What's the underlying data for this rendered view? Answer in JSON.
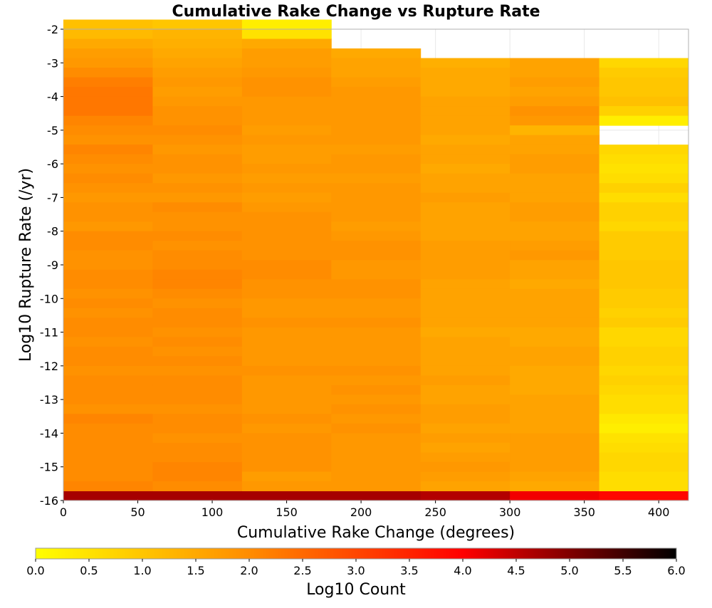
{
  "chart_data": {
    "type": "heatmap",
    "title": "Cumulative Rake Change vs Rupture Rate",
    "xlabel": "Cumulative Rake Change (degrees)",
    "ylabel": "Log10 Rupture Rate (/yr)",
    "xlim": [
      0,
      420
    ],
    "ylim": [
      -16,
      -2
    ],
    "grid": true,
    "x_ticks": [
      "0",
      "50",
      "100",
      "150",
      "200",
      "250",
      "300",
      "350",
      "400"
    ],
    "y_ticks": [
      "-2",
      "-3",
      "-4",
      "-5",
      "-6",
      "-7",
      "-8",
      "-9",
      "-10",
      "-11",
      "-12",
      "-13",
      "-14",
      "-15",
      "-16"
    ],
    "x_bin_edges": [
      0,
      60,
      120,
      180,
      240,
      300,
      360,
      420
    ],
    "y_bin_height": 0.2857,
    "colorbar": {
      "label": "Log10 Count",
      "range": [
        0,
        6
      ],
      "ticks": [
        "0.0",
        "0.5",
        "1.0",
        "1.5",
        "2.0",
        "2.5",
        "3.0",
        "3.5",
        "4.0",
        "4.5",
        "5.0",
        "5.5",
        "6.0"
      ],
      "colors": [
        "#ffff00",
        "#ff8c00",
        "#ff0000",
        "#000000"
      ]
    },
    "columns": [
      {
        "x_start": 0,
        "x_end": 60,
        "bottom_value": 4.7,
        "values": [
          1.1,
          1.2,
          1.5,
          1.7,
          1.8,
          2.0,
          2.2,
          2.3,
          2.3,
          2.3,
          2.1,
          2.0,
          1.9,
          2.1,
          2.0,
          1.9,
          2.0,
          1.9,
          1.8,
          1.9,
          1.9,
          1.8,
          2.0,
          2.0,
          1.9,
          1.9,
          2.0,
          2.0,
          1.9,
          2.0,
          1.9,
          2.0,
          2.0,
          1.9,
          2.0,
          2.0,
          1.9,
          2.0,
          2.0,
          2.0,
          1.9,
          2.1,
          2.0,
          2.0,
          2.0,
          2.0,
          2.0,
          2.0,
          2.1
        ]
      },
      {
        "x_start": 60,
        "x_end": 120,
        "bottom_value": 4.7,
        "values": [
          1.0,
          1.3,
          1.4,
          1.5,
          1.6,
          1.7,
          1.8,
          1.7,
          1.8,
          1.9,
          1.9,
          2.0,
          1.9,
          1.8,
          1.9,
          1.9,
          1.8,
          1.9,
          1.8,
          2.0,
          1.9,
          1.9,
          2.0,
          1.9,
          2.0,
          2.0,
          2.1,
          2.1,
          2.0,
          1.9,
          2.0,
          2.0,
          1.9,
          2.0,
          1.9,
          2.0,
          1.9,
          2.0,
          2.0,
          2.0,
          1.9,
          2.0,
          2.0,
          1.9,
          2.0,
          2.0,
          2.1,
          2.1,
          2.0
        ]
      },
      {
        "x_start": 120,
        "x_end": 180,
        "bottom_value": 4.7,
        "values": [
          0.3,
          0.5,
          1.5,
          1.7,
          1.7,
          1.8,
          1.9,
          1.9,
          1.8,
          1.8,
          1.8,
          1.7,
          1.8,
          1.7,
          1.7,
          1.8,
          1.7,
          1.8,
          1.7,
          1.8,
          1.9,
          1.9,
          1.9,
          1.9,
          1.9,
          2.0,
          2.0,
          1.9,
          1.9,
          1.8,
          1.8,
          1.9,
          1.8,
          1.8,
          1.8,
          1.8,
          1.9,
          1.8,
          1.8,
          1.8,
          1.8,
          1.9,
          1.8,
          1.9,
          1.9,
          1.9,
          1.9,
          1.7,
          1.8
        ]
      },
      {
        "x_start": 180,
        "x_end": 240,
        "bottom_value": 4.7,
        "values": [
          1.5,
          1.6,
          1.6,
          1.7,
          1.8,
          1.8,
          1.8,
          1.8,
          1.8,
          1.8,
          1.7,
          1.8,
          1.8,
          1.7,
          1.8,
          1.8,
          1.8,
          1.8,
          1.7,
          1.8,
          1.9,
          1.9,
          1.8,
          1.8,
          1.9,
          1.9,
          1.8,
          1.8,
          1.9,
          1.8,
          1.8,
          1.8,
          1.8,
          1.9,
          1.8,
          1.9,
          1.8,
          1.9,
          1.8,
          1.9,
          1.8,
          1.8,
          1.8,
          1.8,
          1.8,
          1.8
        ]
      },
      {
        "x_start": 240,
        "x_end": 300,
        "bottom_value": 4.6,
        "values": [
          1.4,
          1.5,
          1.5,
          1.5,
          1.6,
          1.6,
          1.6,
          1.6,
          1.5,
          1.6,
          1.6,
          1.5,
          1.6,
          1.6,
          1.7,
          1.6,
          1.6,
          1.6,
          1.6,
          1.7,
          1.7,
          1.7,
          1.7,
          1.6,
          1.6,
          1.6,
          1.6,
          1.6,
          1.5,
          1.6,
          1.6,
          1.6,
          1.6,
          1.7,
          1.6,
          1.6,
          1.7,
          1.7,
          1.6,
          1.7,
          1.6,
          1.7,
          1.8,
          1.7,
          1.6
        ]
      },
      {
        "x_start": 300,
        "x_end": 360,
        "bottom_value": 4.1,
        "values": [
          1.6,
          1.6,
          1.7,
          1.6,
          1.7,
          1.9,
          1.8,
          1.3,
          1.6,
          1.6,
          1.7,
          1.7,
          1.6,
          1.6,
          1.6,
          1.7,
          1.7,
          1.6,
          1.6,
          1.7,
          1.8,
          1.6,
          1.6,
          1.5,
          1.6,
          1.6,
          1.6,
          1.6,
          1.5,
          1.5,
          1.6,
          1.6,
          1.5,
          1.5,
          1.5,
          1.6,
          1.6,
          1.6,
          1.6,
          1.7,
          1.7,
          1.7,
          1.7,
          1.6,
          1.5
        ]
      },
      {
        "x_start": 360,
        "x_end": 420,
        "bottom_value": 3.9,
        "values": [
          0.7,
          0.9,
          1.0,
          1.0,
          1.1,
          0.8,
          0.3,
          null,
          null,
          0.7,
          0.6,
          0.5,
          0.6,
          0.8,
          0.6,
          0.8,
          0.8,
          0.7,
          0.9,
          0.9,
          0.9,
          1.0,
          1.0,
          1.0,
          0.9,
          0.9,
          0.8,
          0.9,
          0.7,
          0.7,
          0.8,
          0.8,
          0.7,
          0.8,
          0.7,
          0.6,
          0.6,
          0.4,
          0.3,
          0.5,
          0.6,
          0.7,
          0.7,
          0.6,
          0.6
        ]
      }
    ]
  }
}
